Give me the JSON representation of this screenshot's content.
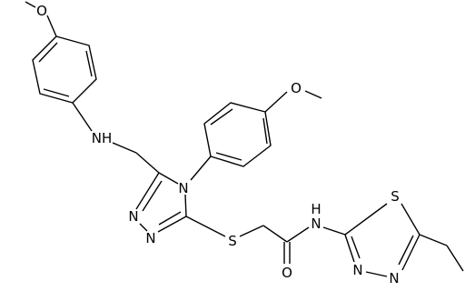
{
  "atoms": [
    {
      "label": "O"
    },
    {
      "label": "NH"
    },
    {
      "label": "N"
    },
    {
      "label": "N"
    },
    {
      "label": "N"
    },
    {
      "label": "O"
    },
    {
      "label": "S"
    },
    {
      "label": "O"
    },
    {
      "label": "N"
    },
    {
      "label": "H"
    },
    {
      "label": "S"
    },
    {
      "label": "N"
    },
    {
      "label": "N"
    }
  ]
}
